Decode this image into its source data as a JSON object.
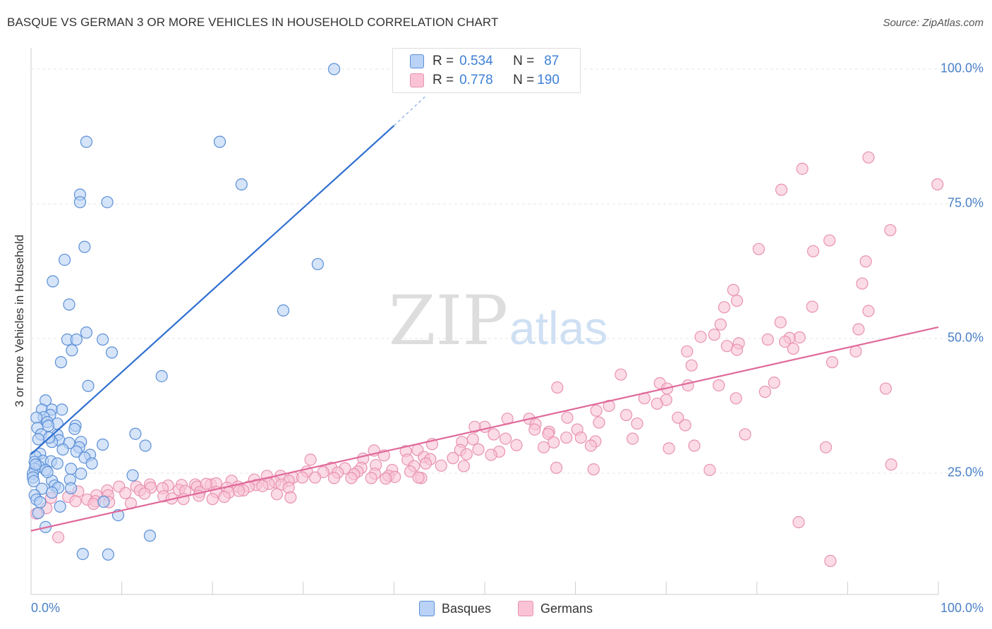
{
  "header": {
    "title": "BASQUE VS GERMAN 3 OR MORE VEHICLES IN HOUSEHOLD CORRELATION CHART",
    "source": "Source: ZipAtlas.com"
  },
  "legend": {
    "rows": [
      {
        "r_label": "R =",
        "r_value": "0.534",
        "n_label": "N =",
        "n_value": "87"
      },
      {
        "r_label": "R =",
        "r_value": "0.778",
        "n_label": "N =",
        "n_value": "190"
      }
    ]
  },
  "bottom_legend": {
    "basques": "Basques",
    "germans": "Germans"
  },
  "watermark": {
    "zip": "ZIP",
    "atlas": "atlas"
  },
  "axes": {
    "ylabel": "3 or more Vehicles in Household",
    "x_min_label": "0.0%",
    "x_max_label": "100.0%",
    "y_ticks": [
      "100.0%",
      "75.0%",
      "50.0%",
      "25.0%"
    ]
  },
  "colors": {
    "basques_fill": "#b9d2f5",
    "basques_stroke": "#5b8fd6",
    "basques_line": "#2f6fd0",
    "germans_fill": "#f9c3d5",
    "germans_stroke": "#e892b0",
    "germans_line": "#e0699a",
    "grid": "#e4e4e4",
    "tick_text": "#4a80c8"
  },
  "chart_data": {
    "type": "scatter",
    "title": "BASQUE VS GERMAN 3 OR MORE VEHICLES IN HOUSEHOLD CORRELATION CHART",
    "xlabel": "",
    "ylabel": "3 or more Vehicles in Household",
    "xlim": [
      0,
      100
    ],
    "ylim": [
      0,
      102
    ],
    "y_ticks": [
      25,
      50,
      75,
      100
    ],
    "grid": true,
    "legend_placement": "top-center",
    "series": [
      {
        "name": "Basques",
        "r": 0.534,
        "n": 87,
        "trend": {
          "x": [
            0,
            40
          ],
          "y": [
            28.5,
            89.5
          ],
          "dashed_extension_to": [
            43.5,
            95
          ]
        },
        "points": [
          [
            33.4,
            100
          ],
          [
            6.1,
            86.5
          ],
          [
            20.8,
            86.5
          ],
          [
            23.2,
            78.6
          ],
          [
            5.4,
            76.7
          ],
          [
            5.4,
            75.3
          ],
          [
            8.4,
            75.3
          ],
          [
            5.9,
            67
          ],
          [
            3.7,
            64.6
          ],
          [
            31.6,
            63.8
          ],
          [
            2.4,
            60.6
          ],
          [
            4.2,
            56.3
          ],
          [
            27.8,
            55.2
          ],
          [
            6.1,
            51.1
          ],
          [
            4.0,
            49.8
          ],
          [
            5.0,
            49.8
          ],
          [
            7.9,
            49.8
          ],
          [
            4.5,
            47.8
          ],
          [
            8.9,
            47.4
          ],
          [
            3.3,
            45.6
          ],
          [
            14.4,
            43
          ],
          [
            6.3,
            41.2
          ],
          [
            1.6,
            38.5
          ],
          [
            1.2,
            36.8
          ],
          [
            2.3,
            36.8
          ],
          [
            3.4,
            36.8
          ],
          [
            2.1,
            35.8
          ],
          [
            1.4,
            35.4
          ],
          [
            0.6,
            35.3
          ],
          [
            1.8,
            34.5
          ],
          [
            2.9,
            34.2
          ],
          [
            1.9,
            33.8
          ],
          [
            4.9,
            33.8
          ],
          [
            0.7,
            33.4
          ],
          [
            4.8,
            33.2
          ],
          [
            1.1,
            32.2
          ],
          [
            2.9,
            32.1
          ],
          [
            11.5,
            32.3
          ],
          [
            0.8,
            31.3
          ],
          [
            3.1,
            31.1
          ],
          [
            2.3,
            30.8
          ],
          [
            5.5,
            30.8
          ],
          [
            4.2,
            30.6
          ],
          [
            7.9,
            30.3
          ],
          [
            12.6,
            30.1
          ],
          [
            5.3,
            29.8
          ],
          [
            5.0,
            29
          ],
          [
            1.0,
            28.6
          ],
          [
            0.5,
            28.1
          ],
          [
            6.5,
            28.4
          ],
          [
            5.9,
            27.9
          ],
          [
            1.3,
            27.3
          ],
          [
            2.2,
            27.2
          ],
          [
            0.4,
            27.1
          ],
          [
            2.9,
            26.8
          ],
          [
            6.7,
            26.8
          ],
          [
            0.9,
            26.2
          ],
          [
            0.4,
            25.8
          ],
          [
            1.6,
            25.6
          ],
          [
            4.4,
            25.8
          ],
          [
            0.2,
            24.9
          ],
          [
            5.5,
            24.9
          ],
          [
            11.2,
            24.6
          ],
          [
            0.2,
            24.2
          ],
          [
            4.3,
            23.8
          ],
          [
            2.3,
            23.6
          ],
          [
            2.6,
            22.7
          ],
          [
            3.0,
            22.3
          ],
          [
            1.2,
            22.1
          ],
          [
            4.4,
            22.2
          ],
          [
            2.3,
            21.4
          ],
          [
            0.4,
            20.9
          ],
          [
            0.6,
            20.1
          ],
          [
            1.0,
            19.6
          ],
          [
            8.0,
            19.7
          ],
          [
            3.2,
            18.8
          ],
          [
            0.8,
            17.6
          ],
          [
            9.6,
            17.2
          ],
          [
            1.6,
            15
          ],
          [
            13.1,
            13.4
          ],
          [
            5.7,
            10
          ],
          [
            8.5,
            9.9
          ],
          [
            0.3,
            23.5
          ],
          [
            1.8,
            25.2
          ],
          [
            3.5,
            29.4
          ],
          [
            0.5,
            26.6
          ],
          [
            2.0,
            31.6
          ]
        ]
      },
      {
        "name": "Germans",
        "r": 0.778,
        "n": 190,
        "trend": {
          "x": [
            0,
            100
          ],
          "y": [
            14.3,
            52.1
          ]
        },
        "points": [
          [
            92.3,
            83.6
          ],
          [
            85.0,
            81.5
          ],
          [
            99.9,
            78.6
          ],
          [
            82.7,
            77.6
          ],
          [
            94.7,
            70.1
          ],
          [
            88.0,
            68.2
          ],
          [
            80.2,
            66.6
          ],
          [
            86.2,
            66.2
          ],
          [
            92.0,
            64.3
          ],
          [
            91.6,
            60.2
          ],
          [
            77.4,
            59
          ],
          [
            77.8,
            57
          ],
          [
            76.4,
            55.8
          ],
          [
            86.1,
            55.9
          ],
          [
            92.3,
            55.1
          ],
          [
            82.6,
            53
          ],
          [
            76.0,
            52.6
          ],
          [
            91.2,
            51.7
          ],
          [
            75.3,
            50.7
          ],
          [
            73.8,
            50.3
          ],
          [
            81.2,
            49.8
          ],
          [
            84.7,
            50.2
          ],
          [
            83.6,
            50.1
          ],
          [
            83.1,
            49.4
          ],
          [
            78.0,
            49.1
          ],
          [
            76.7,
            48.6
          ],
          [
            84.0,
            48.1
          ],
          [
            77.8,
            47.9
          ],
          [
            90.9,
            47.6
          ],
          [
            72.3,
            47.6
          ],
          [
            88.3,
            45.6
          ],
          [
            72.8,
            45
          ],
          [
            65.0,
            43.3
          ],
          [
            81.9,
            41.8
          ],
          [
            69.3,
            41.7
          ],
          [
            75.8,
            41.3
          ],
          [
            72.4,
            41.3
          ],
          [
            58.0,
            40.9
          ],
          [
            94.2,
            40.7
          ],
          [
            70.1,
            40.7
          ],
          [
            80.9,
            40.1
          ],
          [
            67.6,
            38.9
          ],
          [
            70.0,
            38.6
          ],
          [
            77.7,
            38.9
          ],
          [
            69.0,
            37.9
          ],
          [
            63.7,
            37.5
          ],
          [
            62.3,
            36.6
          ],
          [
            65.6,
            35.8
          ],
          [
            59.1,
            35.3
          ],
          [
            52.5,
            35.1
          ],
          [
            71.3,
            35.3
          ],
          [
            54.9,
            35.1
          ],
          [
            62.6,
            34.4
          ],
          [
            66.8,
            34.2
          ],
          [
            72.1,
            33.9
          ],
          [
            55.6,
            34.1
          ],
          [
            50.0,
            33.6
          ],
          [
            55.5,
            33.1
          ],
          [
            48.9,
            33.6
          ],
          [
            57.1,
            32.7
          ],
          [
            60.2,
            33.1
          ],
          [
            78.7,
            32.2
          ],
          [
            57.0,
            32.3
          ],
          [
            51.0,
            32.2
          ],
          [
            60.6,
            31.6
          ],
          [
            66.3,
            31.4
          ],
          [
            59.0,
            31.6
          ],
          [
            48.7,
            31.3
          ],
          [
            52.3,
            31.4
          ],
          [
            57.6,
            30.7
          ],
          [
            62.2,
            30.9
          ],
          [
            47.5,
            30.8
          ],
          [
            44.2,
            30.4
          ],
          [
            53.5,
            30.2
          ],
          [
            73.1,
            30.1
          ],
          [
            61.7,
            30.1
          ],
          [
            56.5,
            29.8
          ],
          [
            70.3,
            29.6
          ],
          [
            87.6,
            29.8
          ],
          [
            49.3,
            29.4
          ],
          [
            51.6,
            29
          ],
          [
            37.8,
            29.2
          ],
          [
            42.6,
            29.3
          ],
          [
            47.3,
            29.3
          ],
          [
            41.3,
            29.1
          ],
          [
            48.0,
            28.5
          ],
          [
            50.7,
            28.4
          ],
          [
            38.9,
            28.3
          ],
          [
            43.3,
            28
          ],
          [
            46.5,
            27.8
          ],
          [
            44.0,
            27.6
          ],
          [
            36.6,
            27.7
          ],
          [
            30.8,
            27.5
          ],
          [
            41.5,
            27.5
          ],
          [
            43.5,
            26.8
          ],
          [
            45.2,
            26.4
          ],
          [
            94.8,
            26.6
          ],
          [
            38.0,
            26.5
          ],
          [
            47.7,
            26.3
          ],
          [
            42.2,
            26.3
          ],
          [
            33.1,
            26
          ],
          [
            36.4,
            26
          ],
          [
            34.6,
            25.9
          ],
          [
            57.9,
            26
          ],
          [
            62.0,
            25.7
          ],
          [
            74.8,
            25.6
          ],
          [
            39.8,
            25.6
          ],
          [
            41.8,
            25.3
          ],
          [
            36.0,
            25.3
          ],
          [
            30.4,
            25.3
          ],
          [
            32.2,
            25.2
          ],
          [
            33.8,
            25.1
          ],
          [
            35.6,
            24.8
          ],
          [
            37.9,
            24.9
          ],
          [
            39.4,
            24.5
          ],
          [
            40.1,
            24.3
          ],
          [
            43.0,
            24.1
          ],
          [
            28.9,
            24.2
          ],
          [
            31.3,
            24.2
          ],
          [
            33.4,
            24.1
          ],
          [
            35.3,
            24.1
          ],
          [
            37.5,
            24.1
          ],
          [
            39.1,
            24
          ],
          [
            42.7,
            24.2
          ],
          [
            26.0,
            24.5
          ],
          [
            27.5,
            24.5
          ],
          [
            29.9,
            24.2
          ],
          [
            22.1,
            23.6
          ],
          [
            24.6,
            23.8
          ],
          [
            26.9,
            23.3
          ],
          [
            28.4,
            23.6
          ],
          [
            19.8,
            22.9
          ],
          [
            16.6,
            22.8
          ],
          [
            18.1,
            22.9
          ],
          [
            20.4,
            23.1
          ],
          [
            24.8,
            22.8
          ],
          [
            26.2,
            23
          ],
          [
            27.6,
            22.9
          ],
          [
            28.4,
            22.3
          ],
          [
            13.1,
            22.9
          ],
          [
            15.1,
            22.7
          ],
          [
            18.3,
            22.5
          ],
          [
            19.3,
            23
          ],
          [
            21.6,
            22.3
          ],
          [
            22.8,
            22.5
          ],
          [
            24.0,
            22.5
          ],
          [
            25.5,
            22.6
          ],
          [
            14.5,
            22.2
          ],
          [
            9.7,
            22.5
          ],
          [
            11.6,
            22.5
          ],
          [
            12.0,
            21.8
          ],
          [
            13.2,
            22.3
          ],
          [
            16.3,
            21.9
          ],
          [
            17.0,
            21.7
          ],
          [
            18.6,
            21.5
          ],
          [
            20.4,
            21.5
          ],
          [
            21.8,
            21.4
          ],
          [
            23.4,
            21.8
          ],
          [
            27.1,
            21.1
          ],
          [
            8.4,
            21.8
          ],
          [
            7.2,
            20.9
          ],
          [
            5.2,
            21.6
          ],
          [
            4.1,
            20.6
          ],
          [
            6.2,
            20.1
          ],
          [
            8.5,
            20.9
          ],
          [
            10.4,
            21.3
          ],
          [
            12.5,
            21.2
          ],
          [
            14.6,
            20.7
          ],
          [
            15.5,
            20.3
          ],
          [
            16.8,
            20.2
          ],
          [
            18.5,
            20.8
          ],
          [
            20.0,
            20.2
          ],
          [
            21.3,
            20.6
          ],
          [
            22.9,
            21.7
          ],
          [
            28.6,
            20.5
          ],
          [
            2.2,
            20.4
          ],
          [
            4.9,
            19.8
          ],
          [
            7.1,
            19.8
          ],
          [
            8.6,
            19.6
          ],
          [
            11.0,
            19.4
          ],
          [
            6.9,
            19.3
          ],
          [
            1.7,
            18.5
          ],
          [
            0.6,
            17.5
          ],
          [
            3.0,
            13.1
          ],
          [
            84.6,
            15.9
          ],
          [
            88.1,
            8.7
          ]
        ]
      }
    ]
  }
}
